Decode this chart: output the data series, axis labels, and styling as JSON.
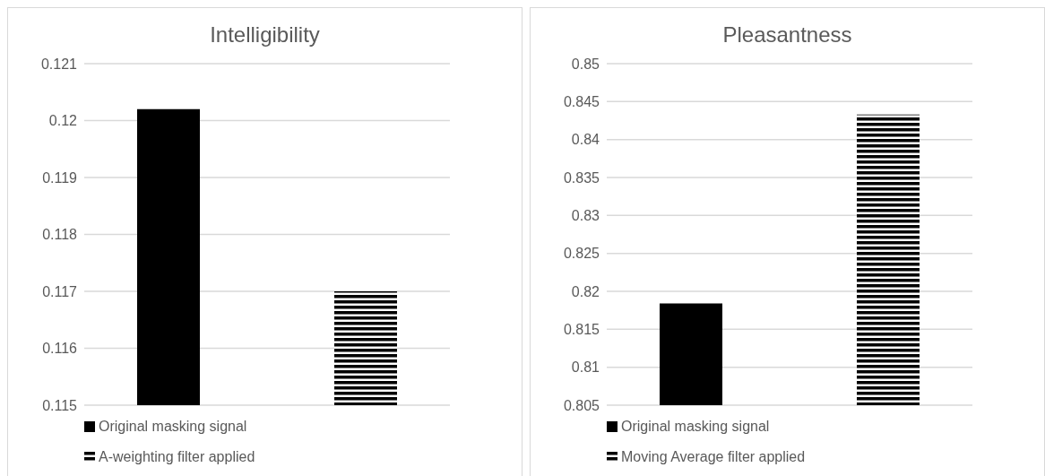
{
  "chart_data": [
    {
      "type": "bar",
      "title": "Intelligibility",
      "categories": [
        null
      ],
      "series": [
        {
          "name": "Original masking signal",
          "color": "#000000",
          "values": [
            0.1202
          ]
        },
        {
          "name": "A-weighting filter applied",
          "color": "#000000",
          "values": [
            0.117
          ]
        }
      ],
      "ylim": [
        0.115,
        0.121
      ],
      "yticks": [
        0.115,
        0.116,
        0.117,
        0.118,
        0.119,
        0.12,
        0.121
      ],
      "grid": "y",
      "legend": "bottom",
      "tick_labels": "y"
    },
    {
      "type": "bar",
      "title": "Pleasantness",
      "categories": [
        null
      ],
      "series": [
        {
          "name": "Original masking signal",
          "color": "#000000",
          "values": [
            0.8184
          ]
        },
        {
          "name": "Moving Average filter applied",
          "color": "#000000",
          "values": [
            0.8433
          ]
        }
      ],
      "ylim": [
        0.805,
        0.85
      ],
      "yticks": [
        0.805,
        0.81,
        0.815,
        0.82,
        0.825,
        0.83,
        0.835,
        0.84,
        0.845,
        0.85
      ],
      "grid": "y",
      "legend": "bottom",
      "tick_labels": "y"
    }
  ]
}
